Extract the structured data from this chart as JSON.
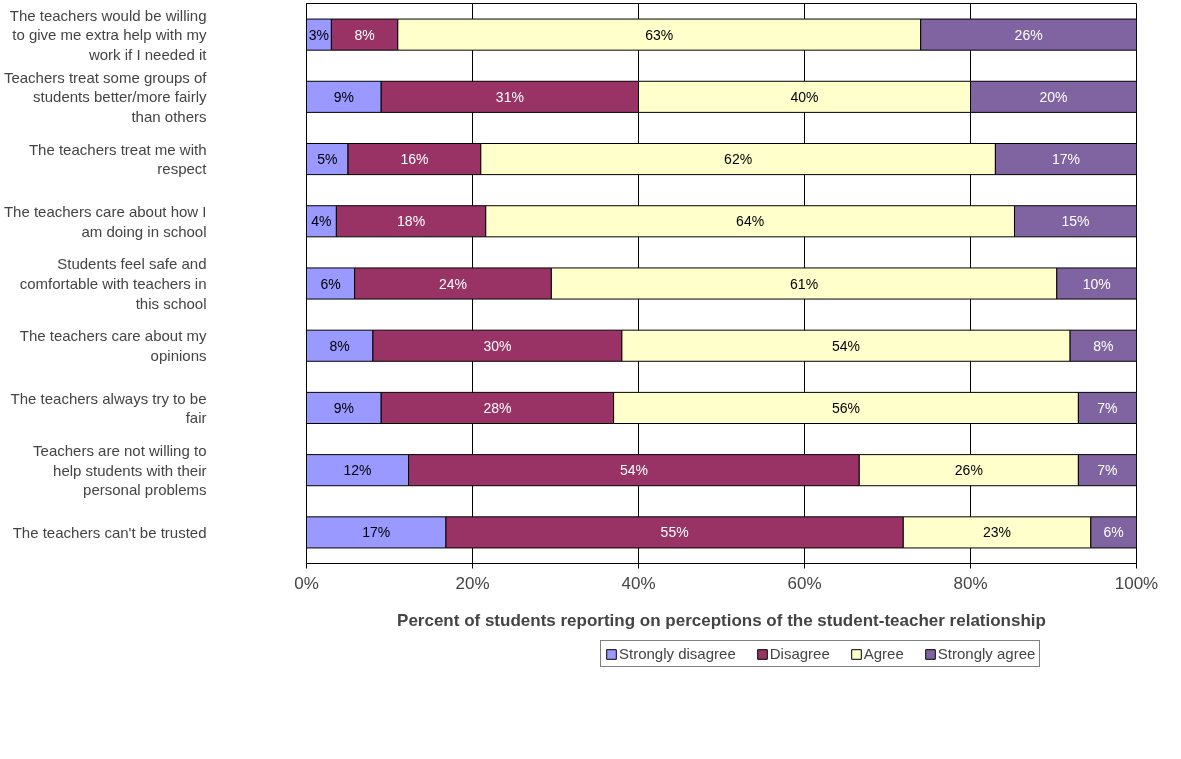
{
  "chart_data": {
    "type": "bar",
    "orientation": "horizontal",
    "stacked": true,
    "xlabel": "Percent of students reporting on perceptions of the student-teacher relationship",
    "categories": [
      "The teachers would be willing to give me extra help with my work if I needed it",
      "Teachers treat some groups of students better/more fairly than others",
      "The teachers treat me with respect",
      "The teachers care about how I am doing in school",
      "Students feel safe and comfortable with teachers in this school",
      "The teachers care about my opinions",
      "The teachers always try to be fair",
      "Teachers are not willing to help students with their personal problems",
      "The teachers can't be trusted"
    ],
    "series": [
      {
        "name": "Strongly disagree",
        "color": "#9999ff",
        "values": [
          3,
          9,
          5,
          3.6,
          5.8,
          8,
          9,
          12.3,
          16.8
        ],
        "value_labels": [
          "3%",
          "9%",
          "5%",
          "4%",
          "6%",
          "8%",
          "9%",
          "12%",
          "17%"
        ]
      },
      {
        "name": "Disagree",
        "color": "#993366",
        "values": [
          8,
          31,
          16,
          18,
          23.7,
          30,
          28,
          54.3,
          55.1
        ],
        "value_labels": [
          "8%",
          "31%",
          "16%",
          "18%",
          "24%",
          "30%",
          "28%",
          "54%",
          "55%"
        ]
      },
      {
        "name": "Agree",
        "color": "#ffffcc",
        "values": [
          63,
          40,
          62,
          63.7,
          60.9,
          54,
          56,
          26.4,
          22.6
        ],
        "value_labels": [
          "63%",
          "40%",
          "62%",
          "64%",
          "61%",
          "54%",
          "56%",
          "26%",
          "23%"
        ]
      },
      {
        "name": "Strongly agree",
        "color": "#8064a2",
        "values": [
          26,
          20,
          17,
          14.7,
          9.6,
          8,
          7,
          7.0,
          5.5
        ],
        "value_labels": [
          "26%",
          "20%",
          "17%",
          "15%",
          "10%",
          "8%",
          "7%",
          "7%",
          "6%"
        ]
      }
    ],
    "xlim": [
      0,
      100
    ],
    "xticks": [
      {
        "value": 0,
        "label": "0%"
      },
      {
        "value": 20,
        "label": "20%"
      },
      {
        "value": 40,
        "label": "40%"
      },
      {
        "value": 60,
        "label": "60%"
      },
      {
        "value": 80,
        "label": "80%"
      },
      {
        "value": 100,
        "label": "100%"
      }
    ],
    "grid": "x",
    "legend": "bottom"
  }
}
